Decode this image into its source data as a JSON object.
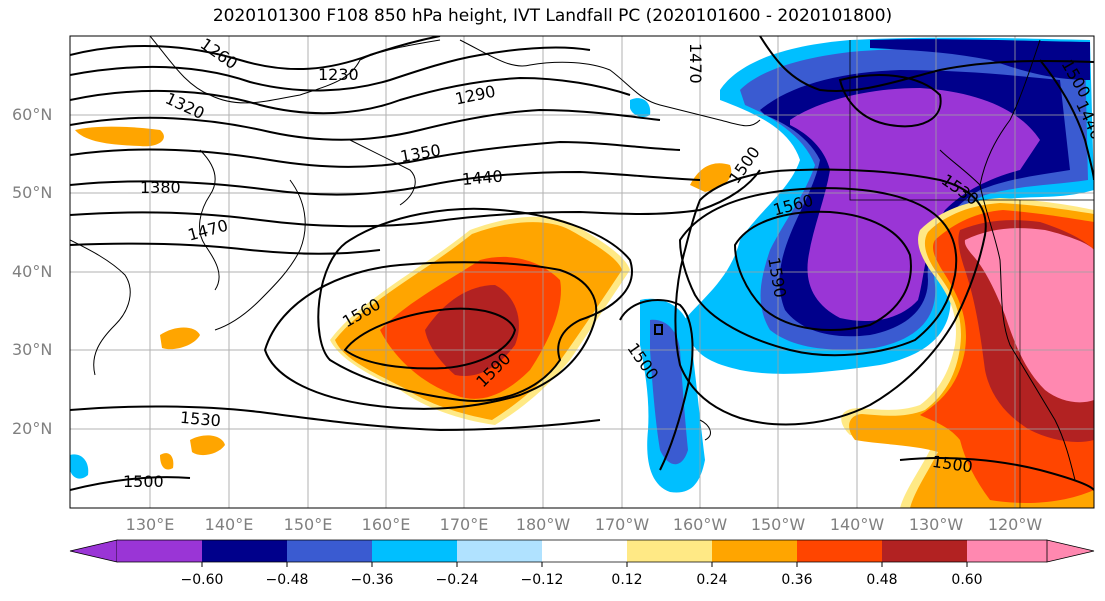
{
  "title": "2020101300 F108 850 hPa height, IVT Landfall PC (2020101600 - 2020101800)",
  "map": {
    "lat_labels": [
      "60°N",
      "50°N",
      "40°N",
      "30°N",
      "20°N"
    ],
    "lon_labels": [
      "130°E",
      "140°E",
      "150°E",
      "160°E",
      "170°E",
      "180°W",
      "170°W",
      "160°W",
      "150°W",
      "140°W",
      "130°W",
      "120°W"
    ],
    "contour_labels": [
      "1260",
      "1230",
      "1290",
      "1320",
      "1350",
      "1380",
      "1440",
      "1470",
      "1500",
      "1500",
      "1500",
      "1500",
      "1500",
      "1560",
      "1560",
      "1590",
      "1590",
      "1530",
      "1530",
      "1470",
      "1440"
    ],
    "contour_color": "#000000",
    "coastline_color": "#000000",
    "grid_color": "#a0a0a0"
  },
  "colorbar": {
    "tick_labels": [
      "−0.60",
      "−0.48",
      "−0.36",
      "−0.24",
      "−0.12",
      "0.12",
      "0.24",
      "0.36",
      "0.48",
      "0.60"
    ],
    "colors": [
      "#9a35d6",
      "#00008b",
      "#3a5bd1",
      "#00bfff",
      "#b0e2ff",
      "#ffffff",
      "#ffe985",
      "#ffa500",
      "#ff4500",
      "#b22222",
      "#ff88b0"
    ]
  }
}
